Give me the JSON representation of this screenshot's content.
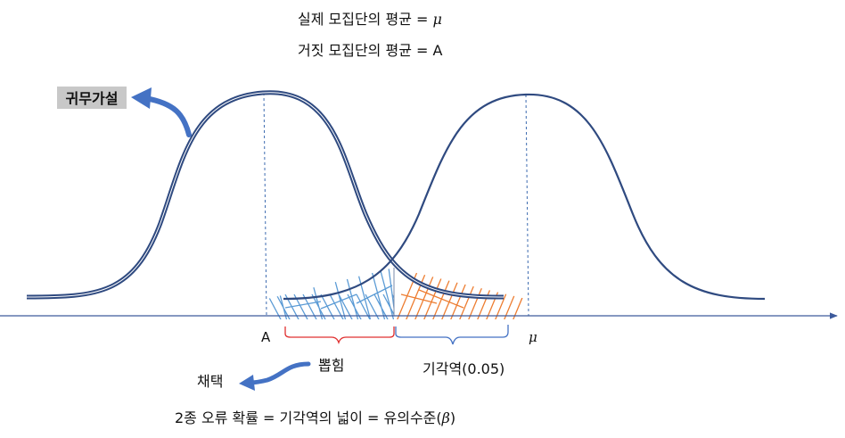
{
  "header": {
    "line1_prefix": "실제 모집단의 평균 = ",
    "line1_symbol": "μ",
    "line2": "거짓 모집단의 평균 = A"
  },
  "labels": {
    "null_hypothesis": "귀무가설",
    "axis_a": "A",
    "axis_mu": "μ",
    "selection": "뽑힘",
    "rejection_region": "기각역(0.05)",
    "adoption": "채택"
  },
  "footer": {
    "prefix": "2종 오류 확률 = 기각역의 넓이 = 유의수준(",
    "symbol": "β",
    "suffix": ")"
  },
  "colors": {
    "curve": "#2f4a80",
    "axis": "#3d5a9c",
    "arrow": "#4472c4",
    "hatch_blue": "#5b9bd5",
    "hatch_orange": "#ed7d31",
    "brace_red": "#e03030",
    "brace_blue": "#4472c4",
    "badge_bg": "#c8c8c8"
  }
}
